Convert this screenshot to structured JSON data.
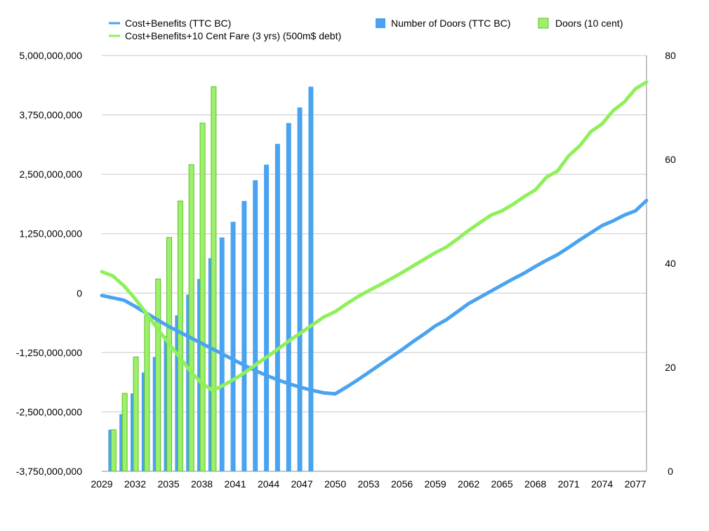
{
  "chart_data": {
    "type": "bar+line",
    "title": "",
    "legend": {
      "position": "top",
      "items": [
        {
          "key": "cb",
          "label": "Cost+Benefits (TTC BC)",
          "kind": "line",
          "color": "#4aa3f0"
        },
        {
          "key": "cb10",
          "label": "Cost+Benefits+10 Cent Fare (3 yrs) (500m$ debt)",
          "kind": "line",
          "color": "#8ff05a"
        },
        {
          "key": "doors",
          "label": "Number of Doors (TTC BC)",
          "kind": "bar",
          "color": "#4aa3f0"
        },
        {
          "key": "doors10",
          "label": "Doors (10 cent)",
          "kind": "bar",
          "color": "#9df06a"
        }
      ]
    },
    "x": {
      "start": 2029,
      "end": 2078,
      "tick_labels": [
        "2029",
        "2032",
        "2035",
        "2038",
        "2041",
        "2044",
        "2047",
        "2050",
        "2053",
        "2056",
        "2059",
        "2062",
        "2065",
        "2068",
        "2071",
        "2074",
        "2077"
      ]
    },
    "y_left": {
      "min": -3750000000,
      "max": 5000000000,
      "tick_values": [
        5000000000,
        3750000000,
        2500000000,
        1250000000,
        0,
        -1250000000,
        -2500000000,
        -3750000000
      ],
      "tick_labels": [
        "5,000,000,000",
        "3,750,000,000",
        "2,500,000,000",
        "1,250,000,000",
        "0",
        "-1,250,000,000",
        "-2,500,000,000",
        "-3,750,000,000"
      ]
    },
    "y_right": {
      "min": 0,
      "max": 80,
      "tick_values": [
        80,
        60,
        40,
        20,
        0
      ],
      "tick_labels": [
        "80",
        "60",
        "40",
        "20",
        "0"
      ]
    },
    "series": [
      {
        "name": "Cost+Benefits (TTC BC)",
        "type": "line",
        "axis": "left",
        "color": "#4aa3f0",
        "x": [
          2029,
          2030,
          2031,
          2032,
          2033,
          2034,
          2035,
          2036,
          2037,
          2038,
          2039,
          2040,
          2041,
          2042,
          2043,
          2044,
          2045,
          2046,
          2047,
          2048,
          2049,
          2050,
          2051,
          2052,
          2053,
          2054,
          2055,
          2056,
          2057,
          2058,
          2059,
          2060,
          2061,
          2062,
          2063,
          2064,
          2065,
          2066,
          2067,
          2068,
          2069,
          2070,
          2071,
          2072,
          2073,
          2074,
          2075,
          2076,
          2077,
          2078
        ],
        "values": [
          -50000000,
          -100000000,
          -150000000,
          -280000000,
          -420000000,
          -560000000,
          -700000000,
          -820000000,
          -940000000,
          -1060000000,
          -1180000000,
          -1300000000,
          -1420000000,
          -1540000000,
          -1650000000,
          -1750000000,
          -1840000000,
          -1920000000,
          -1990000000,
          -2050000000,
          -2100000000,
          -2120000000,
          -1980000000,
          -1830000000,
          -1670000000,
          -1510000000,
          -1350000000,
          -1190000000,
          -1020000000,
          -860000000,
          -690000000,
          -560000000,
          -390000000,
          -220000000,
          -90000000,
          40000000,
          170000000,
          300000000,
          420000000,
          560000000,
          690000000,
          810000000,
          960000000,
          1120000000,
          1270000000,
          1420000000,
          1520000000,
          1640000000,
          1730000000,
          1950000000
        ]
      },
      {
        "name": "Cost+Benefits+10 Cent Fare (3 yrs) (500m$ debt)",
        "type": "line",
        "axis": "left",
        "color": "#8ff05a",
        "x": [
          2029,
          2030,
          2031,
          2032,
          2033,
          2034,
          2035,
          2036,
          2037,
          2038,
          2039,
          2040,
          2041,
          2042,
          2043,
          2044,
          2045,
          2046,
          2047,
          2048,
          2049,
          2050,
          2051,
          2052,
          2053,
          2054,
          2055,
          2056,
          2057,
          2058,
          2059,
          2060,
          2061,
          2062,
          2063,
          2064,
          2065,
          2066,
          2067,
          2068,
          2069,
          2070,
          2071,
          2072,
          2073,
          2074,
          2075,
          2076,
          2077,
          2078
        ],
        "values": [
          450000000,
          360000000,
          150000000,
          -120000000,
          -420000000,
          -750000000,
          -1050000000,
          -1350000000,
          -1650000000,
          -1900000000,
          -2050000000,
          -1930000000,
          -1800000000,
          -1650000000,
          -1480000000,
          -1320000000,
          -1150000000,
          -980000000,
          -820000000,
          -660000000,
          -500000000,
          -390000000,
          -230000000,
          -80000000,
          50000000,
          170000000,
          300000000,
          430000000,
          570000000,
          710000000,
          850000000,
          970000000,
          1140000000,
          1320000000,
          1480000000,
          1640000000,
          1730000000,
          1870000000,
          2030000000,
          2170000000,
          2440000000,
          2570000000,
          2890000000,
          3100000000,
          3400000000,
          3560000000,
          3840000000,
          4020000000,
          4300000000,
          4440000000
        ]
      },
      {
        "name": "Number of Doors (TTC BC)",
        "type": "bar",
        "axis": "right",
        "color": "#4aa3f0",
        "x": [
          2030,
          2031,
          2032,
          2033,
          2034,
          2035,
          2036,
          2037,
          2038,
          2039,
          2040,
          2041,
          2042,
          2043,
          2044,
          2045,
          2046,
          2047,
          2048
        ],
        "values": [
          8,
          11,
          15,
          19,
          22,
          26,
          30,
          34,
          37,
          41,
          45,
          48,
          52,
          56,
          59,
          63,
          67,
          70,
          74
        ]
      },
      {
        "name": "Doors (10 cent)",
        "type": "bar",
        "axis": "right",
        "color": "#9df06a",
        "x": [
          2030,
          2031,
          2032,
          2033,
          2034,
          2035,
          2036,
          2037,
          2038,
          2039
        ],
        "values": [
          8,
          15,
          22,
          30,
          37,
          45,
          52,
          59,
          67,
          74
        ]
      }
    ],
    "grid": "horizontal"
  }
}
